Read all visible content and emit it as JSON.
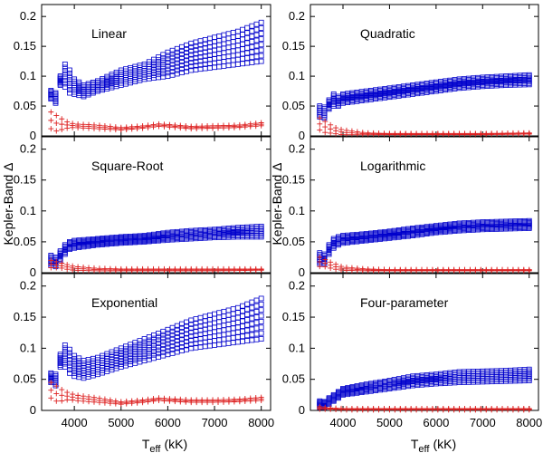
{
  "figure": {
    "ylabel": "Kepler-Band Δ",
    "xlabel_main": "T",
    "xlabel_sub": "eff",
    "xlabel_unit": "(kK)"
  },
  "colors": {
    "model": "#0000cc",
    "residual": "#dd2222",
    "axis": "#000000"
  },
  "chart_data": [
    {
      "type": "scatter",
      "title": "Linear",
      "xlim": [
        3300,
        8200
      ],
      "ylim": [
        0,
        0.22
      ],
      "xticks": [
        "4000",
        "5000",
        "6000",
        "7000",
        "8000"
      ],
      "yticks": [
        "0",
        "0.05",
        "0.1",
        "0.15",
        "0.2"
      ],
      "series": [
        {
          "marker": "square",
          "band": [
            [
              3500,
              0.062,
              0.076
            ],
            [
              3600,
              0.055,
              0.072
            ],
            [
              3700,
              0.085,
              0.1
            ],
            [
              3800,
              0.082,
              0.12
            ],
            [
              3900,
              0.072,
              0.11
            ],
            [
              4000,
              0.07,
              0.095
            ],
            [
              4200,
              0.066,
              0.085
            ],
            [
              4500,
              0.075,
              0.092
            ],
            [
              5000,
              0.085,
              0.11
            ],
            [
              5500,
              0.095,
              0.12
            ],
            [
              6000,
              0.1,
              0.14
            ],
            [
              6500,
              0.11,
              0.155
            ],
            [
              7000,
              0.115,
              0.165
            ],
            [
              7500,
              0.12,
              0.175
            ],
            [
              8000,
              0.125,
              0.19
            ]
          ]
        },
        {
          "marker": "plus",
          "band": [
            [
              3500,
              0.012,
              0.04
            ],
            [
              3600,
              0.008,
              0.035
            ],
            [
              3700,
              0.01,
              0.03
            ],
            [
              3800,
              0.012,
              0.025
            ],
            [
              3900,
              0.014,
              0.022
            ],
            [
              4000,
              0.014,
              0.02
            ],
            [
              4500,
              0.012,
              0.018
            ],
            [
              5000,
              0.01,
              0.014
            ],
            [
              5500,
              0.013,
              0.017
            ],
            [
              5800,
              0.016,
              0.02
            ],
            [
              6000,
              0.015,
              0.019
            ],
            [
              6500,
              0.012,
              0.016
            ],
            [
              7000,
              0.013,
              0.017
            ],
            [
              7500,
              0.014,
              0.018
            ],
            [
              8000,
              0.017,
              0.022
            ]
          ]
        }
      ]
    },
    {
      "type": "scatter",
      "title": "Quadratic",
      "xlim": [
        3300,
        8200
      ],
      "ylim": [
        0,
        0.22
      ],
      "xticks": [
        "4000",
        "5000",
        "6000",
        "7000",
        "8000"
      ],
      "yticks": [
        "0",
        "0.05",
        "0.1",
        "0.15",
        "0.2"
      ],
      "series": [
        {
          "marker": "square",
          "band": [
            [
              3500,
              0.032,
              0.05
            ],
            [
              3600,
              0.03,
              0.048
            ],
            [
              3700,
              0.045,
              0.06
            ],
            [
              3800,
              0.05,
              0.07
            ],
            [
              3900,
              0.05,
              0.066
            ],
            [
              4000,
              0.055,
              0.07
            ],
            [
              4500,
              0.06,
              0.075
            ],
            [
              5000,
              0.065,
              0.08
            ],
            [
              5500,
              0.07,
              0.085
            ],
            [
              6000,
              0.075,
              0.09
            ],
            [
              6500,
              0.08,
              0.095
            ],
            [
              7000,
              0.083,
              0.098
            ],
            [
              7500,
              0.085,
              0.1
            ],
            [
              8000,
              0.086,
              0.102
            ]
          ]
        },
        {
          "marker": "plus",
          "band": [
            [
              3500,
              0.01,
              0.03
            ],
            [
              3600,
              0.006,
              0.025
            ],
            [
              3700,
              0.005,
              0.02
            ],
            [
              3800,
              0.004,
              0.015
            ],
            [
              3900,
              0.003,
              0.012
            ],
            [
              4000,
              0.002,
              0.01
            ],
            [
              4500,
              0.002,
              0.005
            ],
            [
              5000,
              0.002,
              0.004
            ],
            [
              6000,
              0.002,
              0.004
            ],
            [
              7000,
              0.002,
              0.004
            ],
            [
              8000,
              0.003,
              0.005
            ]
          ]
        }
      ]
    },
    {
      "type": "scatter",
      "title": "Square-Root",
      "xlim": [
        3300,
        8200
      ],
      "ylim": [
        0,
        0.22
      ],
      "xticks": [
        "4000",
        "5000",
        "6000",
        "7000",
        "8000"
      ],
      "yticks": [
        "0",
        "0.05",
        "0.1",
        "0.15",
        "0.2"
      ],
      "series": [
        {
          "marker": "square",
          "band": [
            [
              3500,
              0.012,
              0.028
            ],
            [
              3600,
              0.01,
              0.025
            ],
            [
              3700,
              0.02,
              0.035
            ],
            [
              3800,
              0.03,
              0.045
            ],
            [
              3900,
              0.038,
              0.05
            ],
            [
              4000,
              0.04,
              0.052
            ],
            [
              4500,
              0.045,
              0.055
            ],
            [
              5000,
              0.048,
              0.058
            ],
            [
              5500,
              0.05,
              0.06
            ],
            [
              6000,
              0.053,
              0.065
            ],
            [
              6500,
              0.055,
              0.068
            ],
            [
              7000,
              0.057,
              0.07
            ],
            [
              7500,
              0.058,
              0.073
            ],
            [
              8000,
              0.058,
              0.075
            ]
          ]
        },
        {
          "marker": "plus",
          "band": [
            [
              3500,
              0.008,
              0.02
            ],
            [
              3600,
              0.008,
              0.018
            ],
            [
              3700,
              0.008,
              0.016
            ],
            [
              3800,
              0.006,
              0.014
            ],
            [
              3900,
              0.005,
              0.012
            ],
            [
              4000,
              0.004,
              0.01
            ],
            [
              4500,
              0.003,
              0.007
            ],
            [
              5000,
              0.003,
              0.006
            ],
            [
              6000,
              0.003,
              0.006
            ],
            [
              7000,
              0.003,
              0.006
            ],
            [
              8000,
              0.004,
              0.006
            ]
          ]
        }
      ]
    },
    {
      "type": "scatter",
      "title": "Logarithmic",
      "xlim": [
        3300,
        8200
      ],
      "ylim": [
        0,
        0.22
      ],
      "xticks": [
        "4000",
        "5000",
        "6000",
        "7000",
        "8000"
      ],
      "yticks": [
        "0",
        "0.05",
        "0.1",
        "0.15",
        "0.2"
      ],
      "series": [
        {
          "marker": "square",
          "band": [
            [
              3500,
              0.015,
              0.032
            ],
            [
              3600,
              0.015,
              0.03
            ],
            [
              3700,
              0.03,
              0.045
            ],
            [
              3800,
              0.04,
              0.055
            ],
            [
              3900,
              0.045,
              0.058
            ],
            [
              4000,
              0.048,
              0.06
            ],
            [
              4500,
              0.052,
              0.063
            ],
            [
              5000,
              0.056,
              0.067
            ],
            [
              5500,
              0.06,
              0.072
            ],
            [
              6000,
              0.065,
              0.076
            ],
            [
              6500,
              0.068,
              0.08
            ],
            [
              7000,
              0.07,
              0.082
            ],
            [
              7500,
              0.071,
              0.083
            ],
            [
              8000,
              0.072,
              0.084
            ]
          ]
        },
        {
          "marker": "plus",
          "band": [
            [
              3500,
              0.01,
              0.025
            ],
            [
              3600,
              0.01,
              0.022
            ],
            [
              3700,
              0.008,
              0.018
            ],
            [
              3800,
              0.006,
              0.015
            ],
            [
              3900,
              0.005,
              0.012
            ],
            [
              4000,
              0.004,
              0.009
            ],
            [
              4500,
              0.003,
              0.006
            ],
            [
              5000,
              0.003,
              0.005
            ],
            [
              6000,
              0.003,
              0.005
            ],
            [
              7000,
              0.003,
              0.005
            ],
            [
              8000,
              0.003,
              0.005
            ]
          ]
        }
      ]
    },
    {
      "type": "scatter",
      "title": "Exponential",
      "xlim": [
        3300,
        8200
      ],
      "ylim": [
        0,
        0.22
      ],
      "xticks": [
        "4000",
        "5000",
        "6000",
        "7000",
        "8000"
      ],
      "yticks": [
        "0",
        "0.05",
        "0.1",
        "0.15",
        "0.2"
      ],
      "series": [
        {
          "marker": "square",
          "band": [
            [
              3500,
              0.045,
              0.06
            ],
            [
              3600,
              0.04,
              0.058
            ],
            [
              3700,
              0.07,
              0.09
            ],
            [
              3800,
              0.07,
              0.105
            ],
            [
              3900,
              0.06,
              0.098
            ],
            [
              4000,
              0.055,
              0.088
            ],
            [
              4200,
              0.052,
              0.08
            ],
            [
              4500,
              0.058,
              0.085
            ],
            [
              5000,
              0.07,
              0.1
            ],
            [
              5500,
              0.08,
              0.115
            ],
            [
              6000,
              0.09,
              0.13
            ],
            [
              6500,
              0.1,
              0.145
            ],
            [
              7000,
              0.105,
              0.155
            ],
            [
              7500,
              0.11,
              0.165
            ],
            [
              8000,
              0.115,
              0.18
            ]
          ]
        },
        {
          "marker": "plus",
          "band": [
            [
              3500,
              0.02,
              0.045
            ],
            [
              3600,
              0.015,
              0.04
            ],
            [
              3700,
              0.015,
              0.035
            ],
            [
              3800,
              0.016,
              0.03
            ],
            [
              3900,
              0.018,
              0.028
            ],
            [
              4000,
              0.016,
              0.025
            ],
            [
              4500,
              0.013,
              0.02
            ],
            [
              5000,
              0.01,
              0.014
            ],
            [
              5500,
              0.013,
              0.017
            ],
            [
              5800,
              0.016,
              0.02
            ],
            [
              6000,
              0.015,
              0.019
            ],
            [
              6500,
              0.013,
              0.017
            ],
            [
              7000,
              0.013,
              0.017
            ],
            [
              7500,
              0.014,
              0.018
            ],
            [
              8000,
              0.016,
              0.021
            ]
          ]
        }
      ]
    },
    {
      "type": "scatter",
      "title": "Four-parameter",
      "xlim": [
        3300,
        8200
      ],
      "ylim": [
        0,
        0.22
      ],
      "xticks": [
        "4000",
        "5000",
        "6000",
        "7000",
        "8000"
      ],
      "yticks": [
        "0",
        "0.05",
        "0.1",
        "0.15",
        "0.2"
      ],
      "series": [
        {
          "marker": "square",
          "band": [
            [
              3500,
              0.005,
              0.015
            ],
            [
              3600,
              0.005,
              0.014
            ],
            [
              3700,
              0.01,
              0.02
            ],
            [
              3800,
              0.015,
              0.025
            ],
            [
              3900,
              0.02,
              0.03
            ],
            [
              4000,
              0.025,
              0.035
            ],
            [
              4500,
              0.03,
              0.042
            ],
            [
              5000,
              0.035,
              0.048
            ],
            [
              5500,
              0.04,
              0.055
            ],
            [
              6000,
              0.043,
              0.058
            ],
            [
              6500,
              0.045,
              0.062
            ],
            [
              7000,
              0.046,
              0.063
            ],
            [
              7500,
              0.047,
              0.064
            ],
            [
              8000,
              0.048,
              0.066
            ]
          ]
        },
        {
          "marker": "plus",
          "band": [
            [
              3500,
              0.002,
              0.006
            ],
            [
              3600,
              0.002,
              0.005
            ],
            [
              3700,
              0.002,
              0.004
            ],
            [
              4000,
              0.001,
              0.003
            ],
            [
              5000,
              0.001,
              0.003
            ],
            [
              6000,
              0.001,
              0.003
            ],
            [
              7000,
              0.001,
              0.003
            ],
            [
              8000,
              0.001,
              0.003
            ]
          ]
        }
      ]
    }
  ]
}
